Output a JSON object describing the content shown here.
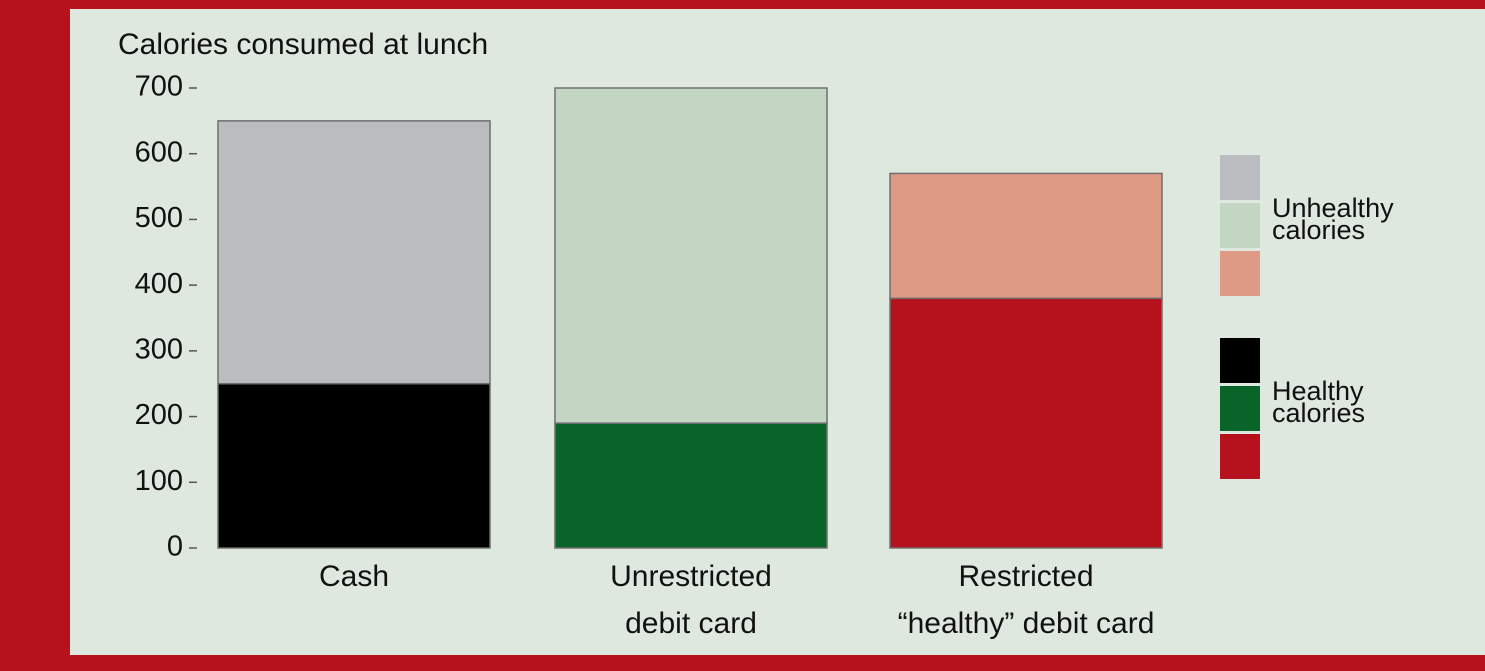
{
  "chart_data": {
    "type": "stacked_bar",
    "title": "Calories consumed at lunch",
    "categories": [
      [
        "Cash"
      ],
      [
        "Unrestricted",
        "debit card"
      ],
      [
        "Restricted",
        "“healthy” debit card"
      ]
    ],
    "series": [
      {
        "name": "Healthy calories",
        "colors": [
          "#000000",
          "#09642a",
          "#b5121e"
        ],
        "values": [
          250,
          190,
          380
        ]
      },
      {
        "name": "Unhealthy calories",
        "colors": [
          "#bbbcc0",
          "#c3d6c3",
          "#de9a85"
        ],
        "values": [
          400,
          510,
          190
        ]
      }
    ],
    "ylim": [
      0,
      700
    ],
    "yticks": [
      0,
      100,
      200,
      300,
      400,
      500,
      600,
      700
    ],
    "legend": "right"
  }
}
